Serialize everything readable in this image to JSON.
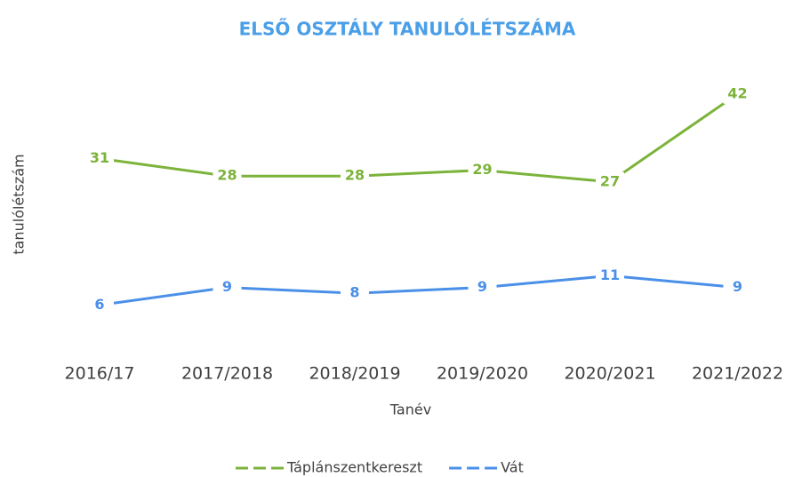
{
  "chart_data": {
    "type": "line",
    "title": "ELSŐ OSZTÁLY TANULÓLÉTSZÁMA",
    "x_label": "Tanév",
    "y_label": "tanulólétszám",
    "categories": [
      "2016/17",
      "2017/2018",
      "2018/2019",
      "2019/2020",
      "2020/2021",
      "2021/2022"
    ],
    "series": [
      {
        "name": "Táplánszentkereszt",
        "color": "#7cb33a",
        "values": [
          31,
          28,
          28,
          29,
          27,
          42
        ]
      },
      {
        "name": "Vát",
        "color": "#4a8fe8",
        "values": [
          6,
          9,
          8,
          9,
          11,
          9
        ]
      }
    ],
    "ylim": [
      0,
      50
    ],
    "legend": "bottom"
  }
}
